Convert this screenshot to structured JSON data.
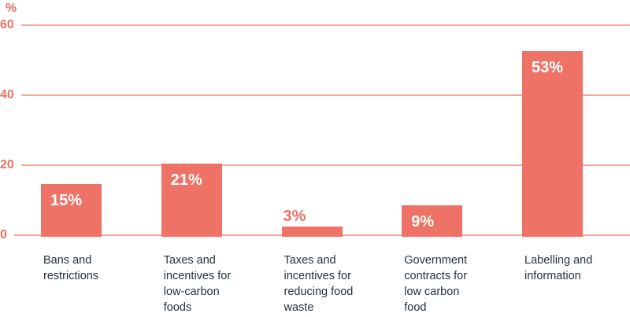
{
  "chart_data": {
    "type": "bar",
    "title": "",
    "unit_label": "%",
    "xlabel": "",
    "ylabel": "%",
    "ylim": [
      0,
      60
    ],
    "yticks": [
      60,
      40,
      20,
      0
    ],
    "grid": true,
    "legend": false,
    "categories": [
      "Bans and\nrestrictions",
      "Taxes and\nincentives for\nlow-carbon\nfoods",
      "Taxes and\nincentives for\nreducing food\nwaste",
      "Government\ncontracts for\nlow carbon\nfood",
      "Labelling and\ninformation"
    ],
    "values": [
      15,
      21,
      3,
      9,
      53
    ],
    "value_labels": [
      "15%",
      "21%",
      "3%",
      "9%",
      "53%"
    ],
    "value_label_placement": [
      "inside",
      "inside",
      "above",
      "inside",
      "inside"
    ],
    "colors": {
      "bar": "#ee7266",
      "gridline": "#f3a89c",
      "axis_text": "#ea6f63",
      "value_label_inside": "#ffffff",
      "value_label_outside": "#ee7266",
      "category_text": "#24333c",
      "background": "#ffffff"
    }
  }
}
